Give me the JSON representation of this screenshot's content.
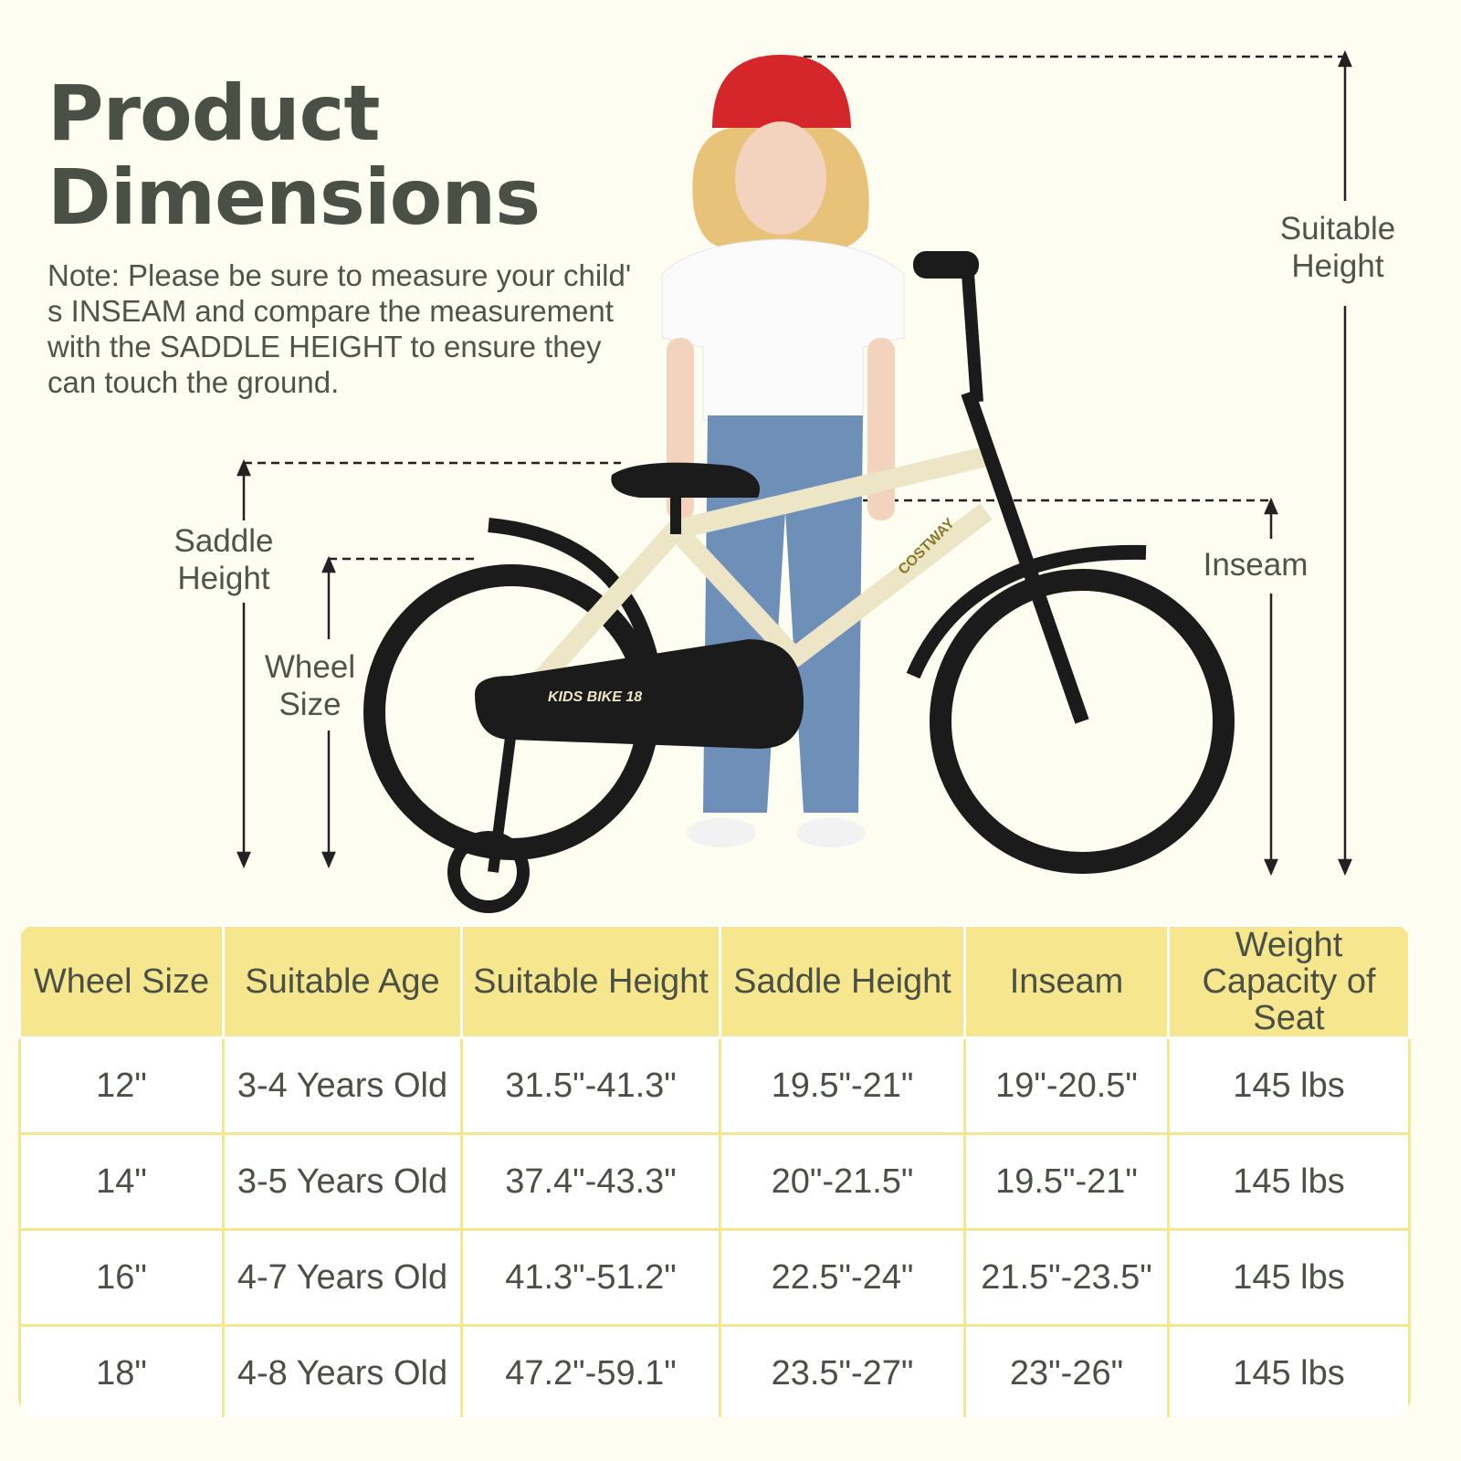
{
  "title_line1": "Product",
  "title_line2": "Dimensions",
  "note": "Note: Please be sure to measure your child' s INSEAM and compare the measurement with the SADDLE HEIGHT to ensure they can touch the ground.",
  "labels": {
    "suitable_height": [
      "Suitable",
      "Height"
    ],
    "saddle_height": [
      "Saddle",
      "Height"
    ],
    "wheel_size": [
      "Wheel",
      "Size"
    ],
    "inseam": "Inseam"
  },
  "bike_branding": {
    "brand": "COSTWAY",
    "model": "KIDS BIKE 18"
  },
  "colors": {
    "background": "#fdfdf2",
    "header": "#f6e78e",
    "text": "#4b5047",
    "helmet": "#d4262b",
    "bike_frame": "#ece6c6"
  },
  "table": {
    "headers": [
      "Wheel Size",
      "Suitable Age",
      "Suitable Height",
      "Saddle Height",
      "Inseam",
      "Weight Capacity of Seat"
    ],
    "rows": [
      [
        "12\"",
        "3-4 Years Old",
        "31.5\"-41.3\"",
        "19.5\"-21\"",
        "19\"-20.5\"",
        "145 lbs"
      ],
      [
        "14\"",
        "3-5 Years Old",
        "37.4\"-43.3\"",
        "20\"-21.5\"",
        "19.5\"-21\"",
        "145 lbs"
      ],
      [
        "16\"",
        "4-7 Years Old",
        "41.3\"-51.2\"",
        "22.5\"-24\"",
        "21.5\"-23.5\"",
        "145 lbs"
      ],
      [
        "18\"",
        "4-8 Years Old",
        "47.2\"-59.1\"",
        "23.5\"-27\"",
        "23\"-26\"",
        "145 lbs"
      ]
    ]
  }
}
